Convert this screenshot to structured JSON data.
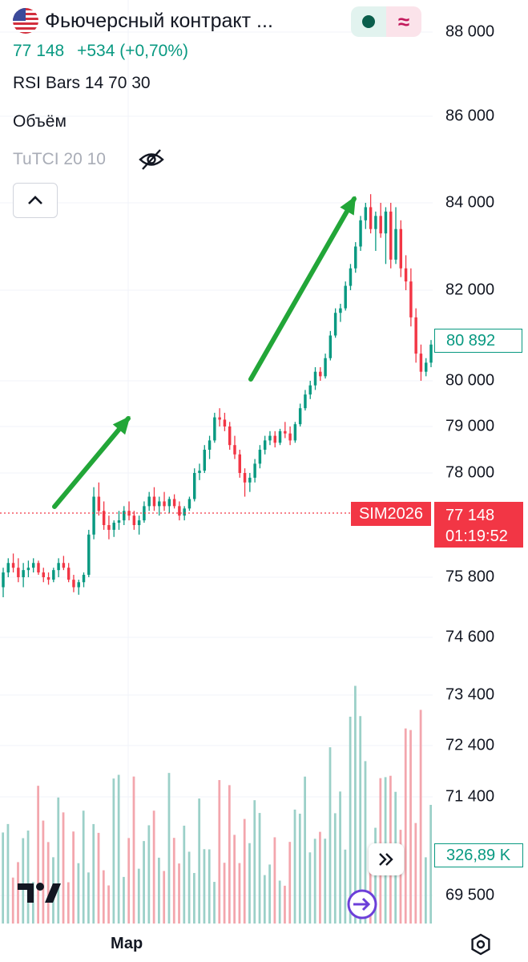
{
  "header": {
    "title": "Фьючерсный контракт ...",
    "price": "77 148",
    "change": "+534 (+0,70%)"
  },
  "indicators": {
    "rsi_bars": "RSI Bars 14 70 30",
    "volume": "Объём",
    "tutci": "TuTCI 20 10"
  },
  "price_axis": [
    "88 000",
    "86 000",
    "84 000",
    "82 000",
    "80 000",
    "79 000",
    "78 000",
    "75 800",
    "74 600",
    "73 400",
    "72 400",
    "71 400",
    "69 500"
  ],
  "tags": {
    "last_visible": "80 892",
    "symbol": "SIM2026",
    "last_price": "77 148",
    "countdown": "01:19:52",
    "volume": "326,89 K"
  },
  "time_axis": {
    "label": "Мар"
  },
  "icons": {
    "flag": "us-flag-icon",
    "hide": "eye-off-icon",
    "collapse": "chevron-up-icon",
    "scroll": "double-chevron-right-icon",
    "replay": "replay-icon",
    "settings": "settings-icon",
    "logo": "tradingview-logo"
  },
  "colors": {
    "up": "#089981",
    "down": "#f23645",
    "annotation_arrow": "#22a638",
    "vol_up": "#9bd0c8",
    "vol_down": "#f3a6ad"
  },
  "chart_data": {
    "type": "candlestick",
    "candles_ohlc": [
      [
        75600,
        76000,
        75400,
        75900
      ],
      [
        75900,
        76200,
        75800,
        76100
      ],
      [
        76100,
        76300,
        75900,
        76000
      ],
      [
        76000,
        76200,
        75700,
        75800
      ],
      [
        75800,
        76100,
        75600,
        75950
      ],
      [
        75950,
        76150,
        75800,
        76000
      ],
      [
        76000,
        76200,
        75900,
        76100
      ],
      [
        76100,
        76150,
        75850,
        75900
      ],
      [
        75900,
        76000,
        75700,
        75800
      ],
      [
        75800,
        75900,
        75650,
        75750
      ],
      [
        75750,
        76000,
        75700,
        75950
      ],
      [
        75950,
        76200,
        75800,
        76100
      ],
      [
        76100,
        76250,
        75950,
        76000
      ],
      [
        76000,
        76100,
        75700,
        75750
      ],
      [
        75750,
        75850,
        75500,
        75600
      ],
      [
        75600,
        75750,
        75450,
        75700
      ],
      [
        75700,
        75900,
        75600,
        75850
      ],
      [
        75850,
        76800,
        75800,
        76700
      ],
      [
        76700,
        77700,
        76600,
        77500
      ],
      [
        77500,
        77800,
        77100,
        77200
      ],
      [
        77200,
        77400,
        76800,
        76900
      ],
      [
        76900,
        77100,
        76600,
        76800
      ],
      [
        76800,
        77000,
        76650,
        76950
      ],
      [
        76950,
        77200,
        76800,
        77000
      ],
      [
        77000,
        77300,
        76900,
        77200
      ],
      [
        77200,
        77400,
        77000,
        77100
      ],
      [
        77100,
        77200,
        76800,
        76900
      ],
      [
        76900,
        77100,
        76700,
        77000
      ],
      [
        77000,
        77400,
        76950,
        77300
      ],
      [
        77300,
        77600,
        77200,
        77500
      ],
      [
        77500,
        77700,
        77200,
        77300
      ],
      [
        77300,
        77500,
        77100,
        77400
      ],
      [
        77400,
        77600,
        77200,
        77300
      ],
      [
        77300,
        77500,
        77150,
        77450
      ],
      [
        77450,
        77550,
        77250,
        77300
      ],
      [
        77300,
        77400,
        77000,
        77100
      ],
      [
        77100,
        77300,
        77000,
        77250
      ],
      [
        77250,
        77500,
        77200,
        77450
      ],
      [
        77450,
        78100,
        77400,
        78000
      ],
      [
        78000,
        78200,
        77850,
        78050
      ],
      [
        78050,
        78600,
        78000,
        78500
      ],
      [
        78500,
        78800,
        78300,
        78700
      ],
      [
        78700,
        79300,
        78650,
        79200
      ],
      [
        79200,
        79400,
        79000,
        79150
      ],
      [
        79150,
        79300,
        78900,
        79000
      ],
      [
        79000,
        79100,
        78500,
        78600
      ],
      [
        78600,
        78800,
        78300,
        78400
      ],
      [
        78400,
        78500,
        77900,
        78000
      ],
      [
        78000,
        78100,
        77500,
        77800
      ],
      [
        77800,
        78000,
        77600,
        77900
      ],
      [
        77900,
        78300,
        77800,
        78200
      ],
      [
        78200,
        78600,
        78100,
        78500
      ],
      [
        78500,
        78800,
        78400,
        78700
      ],
      [
        78700,
        78900,
        78600,
        78800
      ],
      [
        78800,
        78900,
        78550,
        78650
      ],
      [
        78650,
        78950,
        78600,
        78900
      ],
      [
        78900,
        79100,
        78750,
        78850
      ],
      [
        78850,
        79000,
        78600,
        78700
      ],
      [
        78700,
        79100,
        78650,
        79050
      ],
      [
        79050,
        79500,
        79000,
        79400
      ],
      [
        79400,
        79800,
        79350,
        79700
      ],
      [
        79700,
        80000,
        79600,
        79900
      ],
      [
        79900,
        80300,
        79800,
        80200
      ],
      [
        80200,
        80300,
        80000,
        80100
      ],
      [
        80100,
        80600,
        80050,
        80500
      ],
      [
        80500,
        81100,
        80450,
        81000
      ],
      [
        81000,
        81600,
        80950,
        81500
      ],
      [
        81500,
        81700,
        81300,
        81600
      ],
      [
        81600,
        82200,
        81550,
        82100
      ],
      [
        82100,
        82600,
        82000,
        82500
      ],
      [
        82500,
        83100,
        82400,
        83000
      ],
      [
        83000,
        83700,
        82900,
        83600
      ],
      [
        83600,
        84000,
        83400,
        83900
      ],
      [
        83900,
        84200,
        83300,
        83400
      ],
      [
        83400,
        83800,
        82900,
        83700
      ],
      [
        83700,
        84000,
        83200,
        83300
      ],
      [
        83300,
        83900,
        82600,
        83800
      ],
      [
        83800,
        84000,
        82500,
        82700
      ],
      [
        82700,
        83900,
        82600,
        83400
      ],
      [
        83400,
        83600,
        82300,
        82500
      ],
      [
        82500,
        82800,
        82000,
        82200
      ],
      [
        82200,
        82500,
        81200,
        81400
      ],
      [
        81400,
        81600,
        80400,
        80600
      ],
      [
        80600,
        80800,
        80000,
        80200
      ],
      [
        80200,
        80500,
        80100,
        80400
      ],
      [
        80400,
        80900,
        80300,
        80800
      ]
    ],
    "volume_tags": "326,89 K",
    "price_axis_ticks": [
      88000,
      86000,
      84000,
      82000,
      80000,
      79000,
      78000,
      75800,
      74600,
      73400,
      72400,
      71400,
      69500
    ]
  }
}
